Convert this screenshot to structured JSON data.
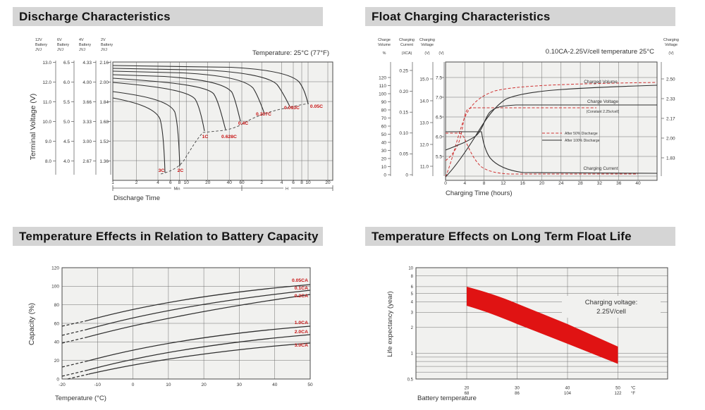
{
  "colors": {
    "title_bar_bg": "#d5d5d5",
    "title_text": "#141414",
    "plot_bg": "#f1f1ef",
    "grid_line": "#6e6e6e",
    "curve_black": "#2f2f2f",
    "curve_red_dashed": "#cf3333",
    "label_red": "#c81414",
    "band_red": "#e01313"
  },
  "chart_data": [
    {
      "id": "discharge",
      "type": "line",
      "title": "Discharge Characteristics",
      "temperature_note": "Temperature: 25°C (77°F)",
      "xlabel": "Discharge Time",
      "ylabel": "Terminal Voltage (V)",
      "x_axis": {
        "minute_ticks": [
          "1",
          "2",
          "4",
          "6",
          "8",
          "10",
          "20",
          "40",
          "60"
        ],
        "hour_ticks": [
          "2",
          "4",
          "6",
          "8",
          "10",
          "20"
        ],
        "minute_segment_label": "Min",
        "hour_segment_label": "H",
        "scale": "log, two segments (minutes then hours)"
      },
      "y_axes": [
        {
          "volt": "12V",
          "name": "Battery",
          "brand": "JVJ",
          "ticks": [
            "13.0",
            "12.0",
            "11.0",
            "10.0",
            "9.0",
            "8.0"
          ]
        },
        {
          "volt": "6V",
          "name": "Battery",
          "brand": "JVJ",
          "ticks": [
            "6.5",
            "6.0",
            "5.5",
            "5.0",
            "4.5",
            "4.0"
          ]
        },
        {
          "volt": "4V",
          "name": "Battery",
          "brand": "JVJ",
          "ticks": [
            "4.33",
            "4.00",
            "3.66",
            "3.33",
            "3.00",
            "2.67"
          ]
        },
        {
          "volt": "2V",
          "name": "Battery",
          "brand": "JVJ",
          "ticks": [
            "2.16",
            "2.00",
            "1.84",
            "1.68",
            "1.52",
            "1.36"
          ]
        }
      ],
      "series": [
        {
          "name": "3C",
          "time_min": [
            1,
            2,
            4,
            6,
            6.8
          ],
          "voltage_2v": [
            1.87,
            1.84,
            1.78,
            1.55,
            1.26
          ]
        },
        {
          "name": "2C",
          "time_min": [
            1,
            2,
            6,
            9,
            10.5
          ],
          "voltage_2v": [
            1.92,
            1.9,
            1.82,
            1.55,
            1.31
          ]
        },
        {
          "name": "1C",
          "time_min": [
            1,
            5,
            12,
            18,
            22
          ],
          "voltage_2v": [
            1.99,
            1.96,
            1.9,
            1.78,
            1.6
          ]
        },
        {
          "name": "0.628C",
          "time_min": [
            1,
            10,
            25,
            35,
            42
          ],
          "voltage_2v": [
            2.03,
            1.99,
            1.9,
            1.78,
            1.61
          ]
        },
        {
          "name": "0.4C",
          "time_min": [
            1,
            20,
            45,
            60,
            68
          ],
          "voltage_2v": [
            2.06,
            2.01,
            1.92,
            1.8,
            1.68
          ]
        },
        {
          "name": "0.207C",
          "time_min": [
            1,
            60,
            120,
            160,
            185
          ],
          "voltage_2v": [
            2.09,
            2.02,
            1.92,
            1.82,
            1.74
          ]
        },
        {
          "name": "0.093C",
          "time_min": [
            1,
            120,
            280,
            380,
            420
          ],
          "voltage_2v": [
            2.11,
            2.04,
            1.94,
            1.84,
            1.8
          ]
        },
        {
          "name": "0.05C",
          "time_min": [
            1,
            240,
            480,
            560,
            620
          ],
          "voltage_2v": [
            2.13,
            2.05,
            1.93,
            1.85,
            1.82
          ]
        }
      ],
      "cutoff_curve": {
        "style": "dashed",
        "description": "locus of discharge end voltages"
      }
    },
    {
      "id": "float_charging",
      "type": "line",
      "title": "Float Charging Characteristics",
      "annotation": "0.10CA-2.25V/cell  temperature 25°C",
      "xlabel": "Charging Time (hours)",
      "x_ticks": [
        "0",
        "4",
        "8",
        "12",
        "16",
        "20",
        "24",
        "28",
        "32",
        "36",
        "40"
      ],
      "y_axes_left": [
        {
          "line1": "Charge",
          "line2": "Volume",
          "unit": "%",
          "ticks": [
            "120",
            "110",
            "100",
            "90",
            "80",
            "70",
            "60",
            "50",
            "40",
            "30",
            "20",
            "10",
            "0"
          ]
        },
        {
          "line1": "Charging",
          "line2": "Current",
          "unit": "(XCA)",
          "ticks": [
            "0.25",
            "0.20",
            "0.15",
            "0.10",
            "0.05",
            "0"
          ]
        },
        {
          "line1": "Charging",
          "line2": "Voltage",
          "unit": "(V)",
          "ticks": [
            "15.0",
            "14.0",
            "13.0",
            "12.0",
            "11.0"
          ]
        },
        {
          "line1": "",
          "line2": "",
          "unit": "(V)",
          "ticks": [
            "7.5",
            "7.0",
            "6.5",
            "6.0",
            "5.5"
          ]
        }
      ],
      "y_axis_right": {
        "line1": "Charging",
        "line2": "Voltage",
        "unit": "(V)",
        "ticks": [
          "2.50",
          "2.33",
          "2.17",
          "2.00",
          "1.83"
        ]
      },
      "plot_labels": {
        "charged_volume": "Charged Volume",
        "charge_voltage": "Charge Voltage",
        "constant_note": "(Constant 2.25v/cell)",
        "charging_current": "Charging Current"
      },
      "legend": [
        {
          "label": "After  50% Discharge",
          "style": "dashed-red"
        },
        {
          "label": "After 100% Discharge",
          "style": "solid-black"
        }
      ],
      "series": [
        {
          "quantity": "Charged Volume",
          "condition": "After 50% Discharge",
          "hours": [
            0,
            2,
            4,
            6,
            8,
            12,
            24,
            40
          ],
          "percent": [
            0,
            40,
            75,
            95,
            103,
            108,
            112,
            113
          ]
        },
        {
          "quantity": "Charged Volume",
          "condition": "After 100% Discharge",
          "hours": [
            0,
            2,
            4,
            6,
            8,
            12,
            24,
            40
          ],
          "percent": [
            0,
            18,
            45,
            70,
            86,
            99,
            108,
            111
          ]
        },
        {
          "quantity": "Charge Voltage",
          "condition": "After 50% Discharge",
          "hours": [
            0,
            1,
            2,
            3,
            4,
            6,
            22
          ],
          "v_per_cell": [
            1.98,
            2.02,
            2.1,
            2.2,
            2.25,
            2.25,
            2.25
          ]
        },
        {
          "quantity": "Charge Voltage",
          "condition": "After 100% Discharge",
          "hours": [
            0,
            2,
            4,
            6,
            8,
            10,
            40
          ],
          "v_per_cell": [
            2.02,
            2.05,
            2.1,
            2.17,
            2.23,
            2.25,
            2.26
          ]
        },
        {
          "quantity": "Charging Current",
          "condition": "After 50% Discharge",
          "hours": [
            0,
            3,
            4,
            6,
            8,
            16,
            40
          ],
          "xca": [
            0.1,
            0.1,
            0.08,
            0.04,
            0.02,
            0.005,
            0.004
          ]
        },
        {
          "quantity": "Charging Current",
          "condition": "After 100% Discharge",
          "hours": [
            0,
            7.5,
            9,
            10,
            12,
            20,
            40
          ],
          "xca": [
            0.1,
            0.1,
            0.07,
            0.05,
            0.03,
            0.006,
            0.004
          ]
        }
      ]
    },
    {
      "id": "temp_capacity",
      "type": "line",
      "title": "Temperature Effects in Relation to Battery Capacity",
      "xlabel": "Temperature (°C)",
      "ylabel": "Capacity (%)",
      "x_ticks": [
        "-20",
        "-10",
        "0",
        "10",
        "20",
        "30",
        "40",
        "50"
      ],
      "y_ticks": [
        "120",
        "100",
        "80",
        "60",
        "40",
        "20",
        "0"
      ],
      "x": [
        -20,
        -10,
        0,
        10,
        20,
        30,
        40,
        50
      ],
      "series": [
        {
          "name": "0.05CA",
          "values": [
            57,
            70,
            79,
            86,
            92,
            96,
            99,
            102
          ]
        },
        {
          "name": "0.1CA",
          "values": [
            47,
            60,
            70,
            78,
            84,
            89,
            93,
            96
          ]
        },
        {
          "name": "0.2CA",
          "values": [
            39,
            52,
            62,
            70,
            77,
            82,
            87,
            91
          ]
        },
        {
          "name": "1.0CA",
          "values": [
            13,
            23,
            32,
            39,
            45,
            50,
            54,
            57
          ]
        },
        {
          "name": "2.0CA",
          "values": [
            3,
            13,
            22,
            29,
            35,
            40,
            44,
            48
          ]
        },
        {
          "name": "3.0CA",
          "values": [
            -7,
            2,
            11,
            19,
            25,
            31,
            35,
            39
          ]
        }
      ]
    },
    {
      "id": "float_life",
      "type": "area",
      "title": "Temperature Effects on Long Term Float Life",
      "annotation_line1": "Charging voltage:",
      "annotation_line2": "2.25V/cell",
      "xlabel": "Battery temperature",
      "ylabel": "Life expectancy (year)",
      "x_ticks_c": [
        "20",
        "30",
        "40",
        "50"
      ],
      "x_ticks_f": [
        "68",
        "86",
        "104",
        "122"
      ],
      "x_unit_c": "°C",
      "x_unit_f": "°F",
      "y_ticks": [
        "10",
        "8",
        "6",
        "5",
        "4",
        "3",
        "2",
        "1",
        "0.5"
      ],
      "y_scale": "log",
      "band": {
        "temperature_c": [
          20,
          30,
          40,
          50
        ],
        "years_upper": [
          6.0,
          3.8,
          2.2,
          1.2
        ],
        "years_lower": [
          3.6,
          2.2,
          1.3,
          0.75
        ]
      }
    }
  ]
}
